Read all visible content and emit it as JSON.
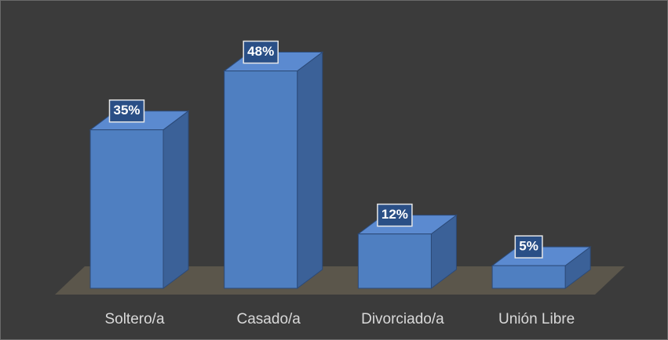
{
  "chart_data": {
    "type": "bar3d",
    "categories": [
      "Soltero/a",
      "Casado/a",
      "Divorciado/a",
      "Unión Libre"
    ],
    "values": [
      35,
      48,
      12,
      5
    ],
    "value_labels": [
      "35%",
      "48%",
      "12%",
      "5%"
    ],
    "color": "#4f7fc1"
  }
}
